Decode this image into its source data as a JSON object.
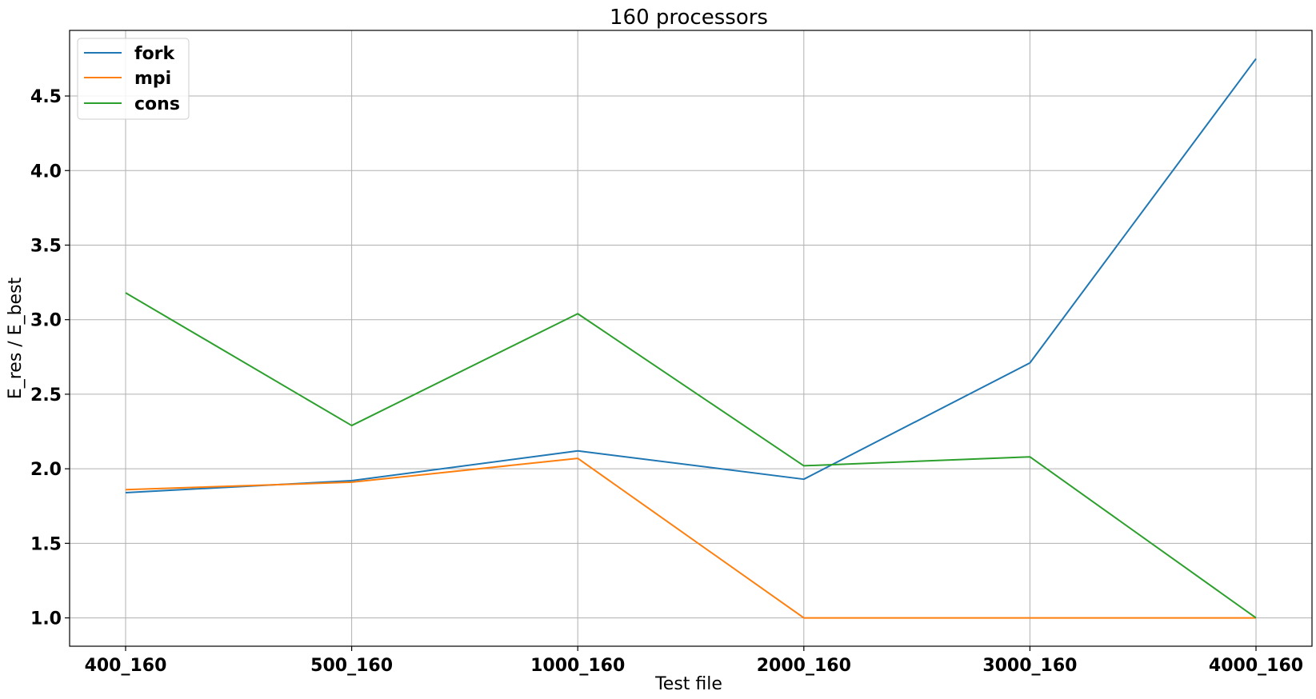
{
  "chart_data": {
    "type": "line",
    "title": "160 processors",
    "xlabel": "Test file",
    "ylabel": "E_res / E_best",
    "categories": [
      "400_160",
      "500_160",
      "1000_160",
      "2000_160",
      "3000_160",
      "4000_160"
    ],
    "series": [
      {
        "name": "fork",
        "color": "#1f77b4",
        "values": [
          1.84,
          1.92,
          2.12,
          1.93,
          2.71,
          4.75
        ]
      },
      {
        "name": "mpi",
        "color": "#ff7f0e",
        "values": [
          1.86,
          1.91,
          2.07,
          1.0,
          1.0,
          1.0
        ]
      },
      {
        "name": "cons",
        "color": "#2ca02c",
        "values": [
          3.18,
          2.29,
          3.04,
          2.02,
          2.08,
          1.0
        ]
      }
    ],
    "ylim": [
      0.81,
      4.94
    ],
    "yticks": [
      1.0,
      1.5,
      2.0,
      2.5,
      3.0,
      3.5,
      4.0,
      4.5
    ],
    "grid": true,
    "legend_position": "top-left"
  }
}
